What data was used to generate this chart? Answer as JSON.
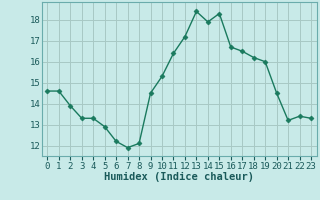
{
  "x": [
    0,
    1,
    2,
    3,
    4,
    5,
    6,
    7,
    8,
    9,
    10,
    11,
    12,
    13,
    14,
    15,
    16,
    17,
    18,
    19,
    20,
    21,
    22,
    23
  ],
  "y": [
    14.6,
    14.6,
    13.9,
    13.3,
    13.3,
    12.9,
    12.2,
    11.9,
    12.1,
    14.5,
    15.3,
    16.4,
    17.2,
    18.4,
    17.9,
    18.3,
    16.7,
    16.5,
    16.2,
    16.0,
    14.5,
    13.2,
    13.4,
    13.3
  ],
  "line_color": "#1a7a5e",
  "marker": "D",
  "marker_size": 2.5,
  "bg_color": "#c8eae8",
  "grid_color": "#a8c8c4",
  "xlabel": "Humidex (Indice chaleur)",
  "ylabel": "",
  "title": "",
  "xlim": [
    -0.5,
    23.5
  ],
  "ylim": [
    11.5,
    18.85
  ],
  "yticks": [
    12,
    13,
    14,
    15,
    16,
    17,
    18
  ],
  "xticks": [
    0,
    1,
    2,
    3,
    4,
    5,
    6,
    7,
    8,
    9,
    10,
    11,
    12,
    13,
    14,
    15,
    16,
    17,
    18,
    19,
    20,
    21,
    22,
    23
  ],
  "xlabel_fontsize": 7.5,
  "tick_fontsize": 6.5,
  "text_color": "#1a5a5a",
  "spine_color": "#6aacac"
}
